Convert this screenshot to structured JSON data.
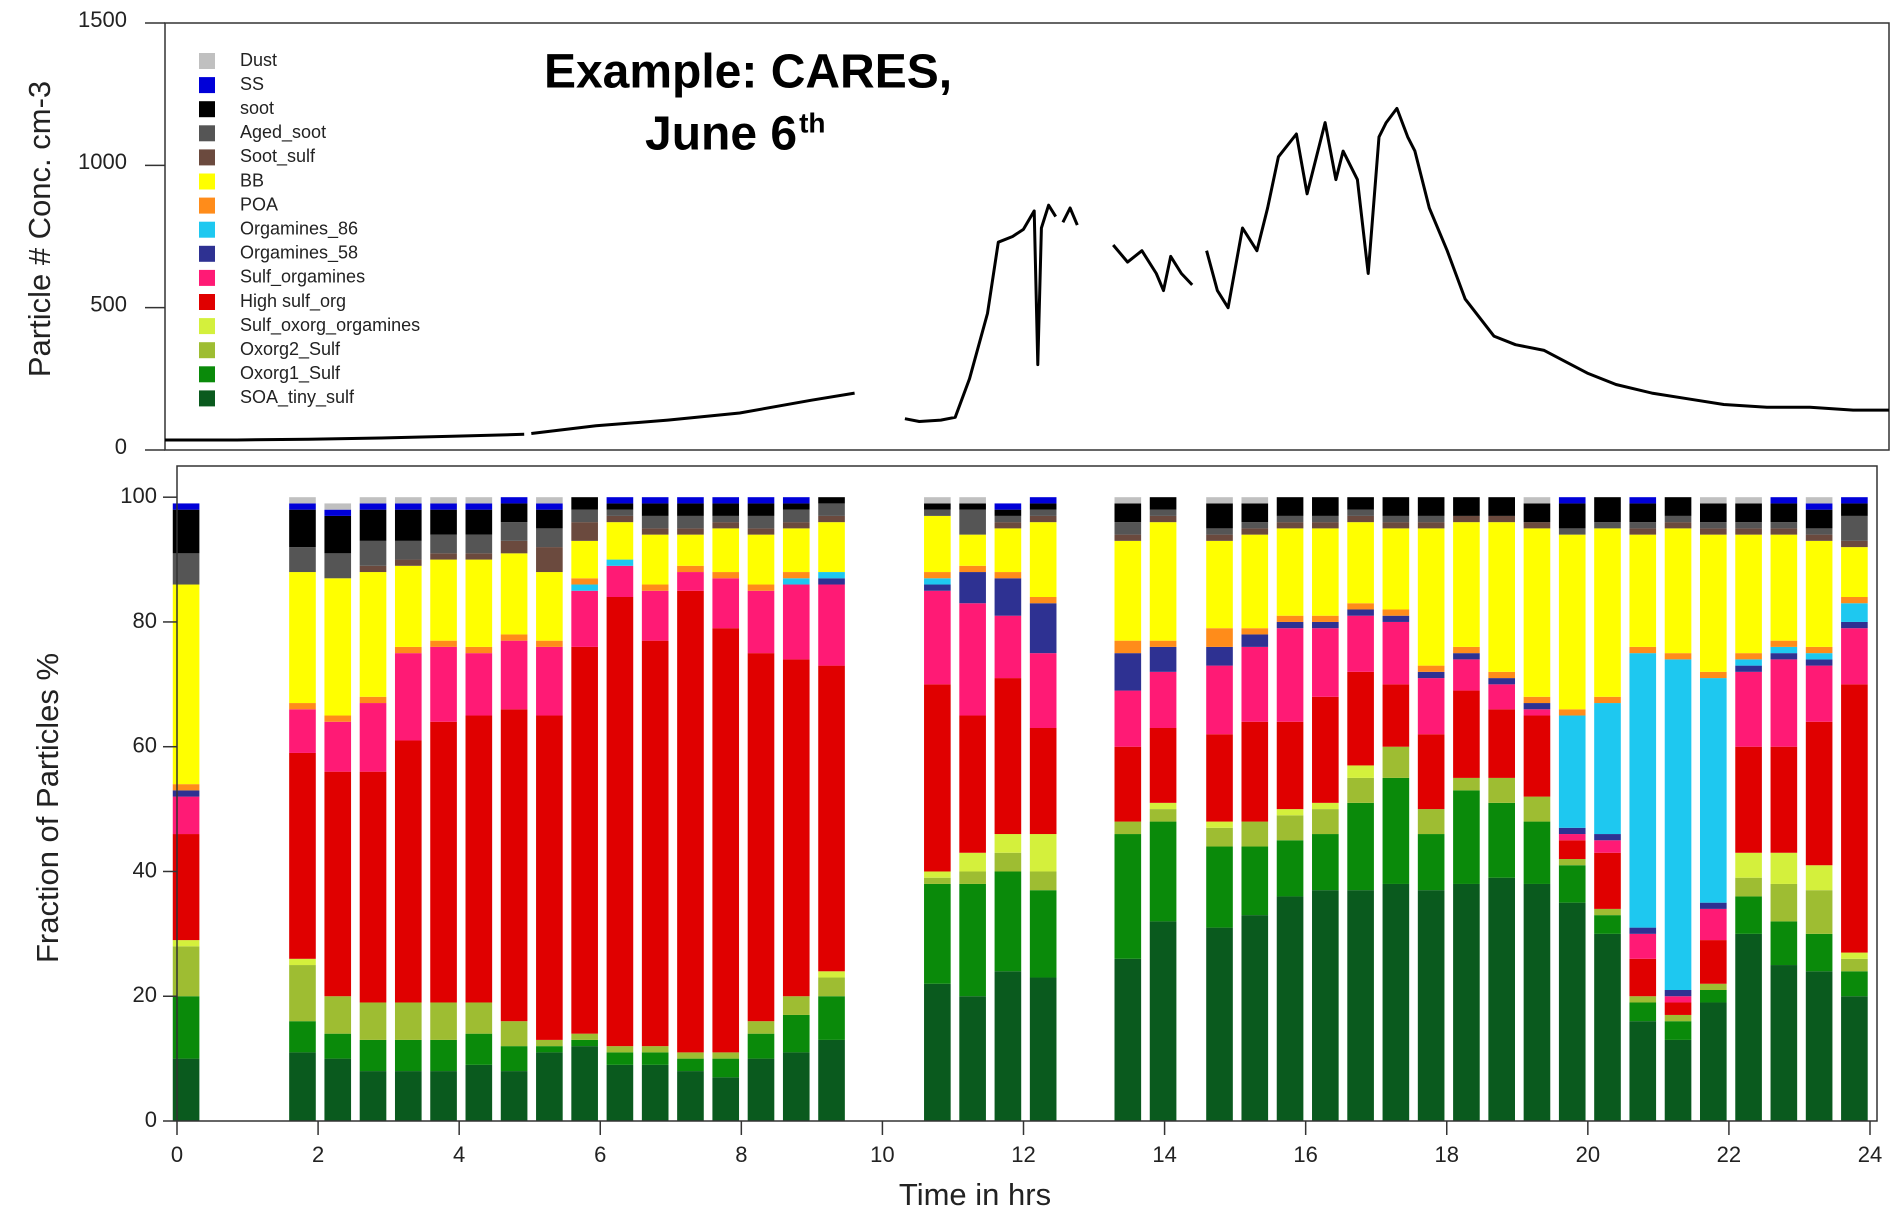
{
  "chart_data": [
    {
      "type": "line",
      "ylabel": "Particle # Conc. cm-3",
      "title_lines": [
        "Example: CARES,",
        "June 6"
      ],
      "title_sup": "th",
      "xlim": [
        0,
        24
      ],
      "ylim": [
        0,
        1500
      ],
      "yticks": [
        0,
        500,
        1000,
        1500
      ],
      "color": "#000000",
      "x": [
        0,
        1,
        2,
        3,
        4,
        5,
        5.05,
        5.1,
        6,
        7,
        8,
        9,
        9.6,
        9.8,
        10.3,
        10.5,
        10.8,
        11.0,
        11.2,
        11.45,
        11.6,
        11.8,
        11.95,
        12.1,
        12.15,
        12.2,
        12.3,
        12.4,
        12.45,
        12.5,
        12.6,
        12.7,
        12.95,
        13.2,
        13.4,
        13.6,
        13.8,
        13.9,
        14.0,
        14.15,
        14.3,
        14.4,
        14.5,
        14.65,
        14.8,
        15.0,
        15.2,
        15.35,
        15.5,
        15.75,
        15.9,
        16.0,
        16.15,
        16.3,
        16.4,
        16.6,
        16.75,
        16.9,
        17.0,
        17.15,
        17.3,
        17.4,
        17.6,
        17.85,
        18.1,
        18.5,
        18.8,
        19.2,
        19.5,
        19.8,
        20.2,
        20.7,
        21.2,
        21.7,
        22.3,
        22.9,
        23.5,
        24
      ],
      "values": [
        35,
        35,
        38,
        42,
        48,
        55,
        null,
        58,
        85,
        105,
        130,
        175,
        200,
        null,
        110,
        100,
        105,
        115,
        250,
        480,
        730,
        750,
        775,
        840,
        300,
        780,
        860,
        820,
        null,
        800,
        850,
        790,
        null,
        720,
        660,
        700,
        620,
        560,
        680,
        620,
        580,
        null,
        700,
        560,
        500,
        780,
        700,
        850,
        1030,
        1110,
        900,
        1000,
        1150,
        950,
        1050,
        950,
        620,
        1100,
        1150,
        1200,
        1100,
        1050,
        850,
        700,
        530,
        400,
        370,
        350,
        310,
        270,
        230,
        200,
        180,
        160,
        150,
        150,
        140,
        140
      ]
    },
    {
      "type": "stacked_bar",
      "ylabel": "Fraction of Particles %",
      "xlabel": "Time in hrs",
      "xlim": [
        0,
        24
      ],
      "xticks": [
        0,
        2,
        4,
        6,
        8,
        10,
        12,
        14,
        16,
        18,
        20,
        22,
        24
      ],
      "ylim": [
        0,
        105
      ],
      "yticks": [
        0,
        20,
        40,
        60,
        80,
        100
      ],
      "x": [
        0.15,
        1.8,
        2.3,
        2.8,
        3.3,
        3.8,
        4.3,
        4.8,
        5.3,
        5.8,
        6.3,
        6.8,
        7.3,
        7.8,
        8.3,
        8.8,
        9.3,
        10.8,
        11.3,
        11.8,
        12.3,
        13.5,
        14.0,
        14.8,
        15.3,
        15.8,
        16.3,
        16.8,
        17.3,
        17.8,
        18.3,
        18.8,
        19.3,
        19.8,
        20.3,
        20.8,
        21.3,
        21.8,
        22.3,
        22.8,
        23.3,
        23.8
      ],
      "series": [
        {
          "name": "Dust",
          "color": "#c0c0c0",
          "values": [
            0,
            1,
            1,
            1,
            1,
            1,
            1,
            0,
            1,
            0,
            0,
            0,
            0,
            0,
            0,
            0,
            0,
            1,
            1,
            0,
            0,
            1,
            0,
            1,
            1,
            0,
            0,
            0,
            0,
            0,
            0,
            0,
            1,
            0,
            0,
            0,
            0,
            1,
            1,
            0,
            1,
            0
          ]
        },
        {
          "name": "SS",
          "color": "#0000d8",
          "values": [
            1,
            1,
            1,
            1,
            1,
            1,
            1,
            1,
            1,
            0,
            1,
            1,
            1,
            1,
            1,
            1,
            0,
            0,
            0,
            1,
            1,
            0,
            0,
            0,
            0,
            0,
            0,
            0,
            0,
            0,
            0,
            0,
            0,
            1,
            0,
            1,
            0,
            0,
            0,
            1,
            1,
            1
          ]
        },
        {
          "name": "soot",
          "color": "#000000",
          "values": [
            7,
            6,
            6,
            5,
            5,
            4,
            4,
            3,
            3,
            2,
            1,
            2,
            2,
            2,
            2,
            1,
            1,
            1,
            1,
            1,
            1,
            3,
            2,
            4,
            3,
            3,
            3,
            2,
            3,
            3,
            3,
            3,
            3,
            4,
            4,
            3,
            3,
            3,
            3,
            3,
            3,
            2
          ]
        },
        {
          "name": "Aged_soot",
          "color": "#555555",
          "values": [
            5,
            4,
            4,
            4,
            3,
            3,
            3,
            3,
            3,
            2,
            1,
            2,
            2,
            1,
            2,
            2,
            2,
            1,
            4,
            1,
            1,
            2,
            1,
            1,
            1,
            1,
            1,
            1,
            1,
            1,
            0,
            0,
            0,
            1,
            1,
            1,
            1,
            1,
            1,
            1,
            1,
            4
          ]
        },
        {
          "name": "Soot_sulf",
          "color": "#6b4a3e",
          "values": [
            0,
            0,
            0,
            1,
            1,
            1,
            1,
            2,
            4,
            3,
            1,
            1,
            1,
            1,
            1,
            1,
            1,
            0,
            0,
            1,
            1,
            1,
            1,
            1,
            1,
            1,
            1,
            1,
            1,
            1,
            1,
            1,
            1,
            0,
            0,
            1,
            1,
            1,
            1,
            1,
            1,
            1
          ]
        },
        {
          "name": "BB",
          "color": "#ffff00",
          "values": [
            32,
            21,
            22,
            20,
            13,
            13,
            14,
            13,
            11,
            6,
            6,
            8,
            5,
            7,
            8,
            7,
            8,
            9,
            5,
            7,
            12,
            16,
            19,
            14,
            15,
            14,
            14,
            13,
            13,
            22,
            20,
            24,
            27,
            28,
            27,
            18,
            20,
            22,
            19,
            17,
            17,
            8
          ]
        },
        {
          "name": "POA",
          "color": "#ff8c1a",
          "values": [
            1,
            1,
            1,
            1,
            1,
            1,
            1,
            1,
            1,
            1,
            0,
            1,
            1,
            1,
            1,
            1,
            0,
            1,
            1,
            1,
            1,
            2,
            1,
            3,
            1,
            1,
            1,
            1,
            1,
            1,
            1,
            1,
            1,
            1,
            1,
            1,
            1,
            1,
            1,
            1,
            1,
            1
          ]
        },
        {
          "name": "Orgamines_86",
          "color": "#1ec8f0",
          "values": [
            0,
            0,
            0,
            0,
            0,
            0,
            0,
            0,
            0,
            1,
            1,
            0,
            0,
            0,
            0,
            1,
            1,
            1,
            0,
            0,
            0,
            0,
            0,
            0,
            0,
            0,
            0,
            0,
            0,
            0,
            0,
            0,
            0,
            18,
            21,
            44,
            53,
            36,
            1,
            1,
            1,
            3
          ]
        },
        {
          "name": "Orgamines_58",
          "color": "#2e3192",
          "values": [
            1,
            0,
            0,
            0,
            0,
            0,
            0,
            0,
            0,
            0,
            0,
            0,
            0,
            0,
            0,
            0,
            1,
            1,
            5,
            6,
            8,
            6,
            4,
            3,
            2,
            1,
            1,
            1,
            1,
            1,
            1,
            1,
            1,
            1,
            1,
            1,
            1,
            1,
            1,
            1,
            1,
            1
          ]
        },
        {
          "name": "Sulf_orgamines",
          "color": "#ff1a75",
          "values": [
            6,
            7,
            8,
            11,
            14,
            12,
            10,
            11,
            11,
            9,
            5,
            8,
            3,
            8,
            10,
            12,
            13,
            15,
            18,
            10,
            12,
            9,
            9,
            11,
            12,
            15,
            11,
            9,
            10,
            9,
            5,
            4,
            1,
            1,
            2,
            4,
            1,
            5,
            12,
            14,
            9,
            9
          ]
        },
        {
          "name": "High sulf_org",
          "color": "#e00000",
          "values": [
            17,
            33,
            36,
            37,
            42,
            45,
            46,
            50,
            52,
            62,
            72,
            65,
            74,
            68,
            59,
            54,
            49,
            30,
            22,
            25,
            17,
            12,
            12,
            14,
            16,
            14,
            17,
            15,
            10,
            12,
            14,
            11,
            13,
            3,
            9,
            6,
            2,
            7,
            17,
            17,
            23,
            43
          ]
        },
        {
          "name": "Sulf_oxorg_orgamines",
          "color": "#d4f03c",
          "values": [
            1,
            1,
            0,
            0,
            0,
            0,
            0,
            0,
            0,
            0,
            0,
            0,
            0,
            0,
            0,
            0,
            1,
            1,
            3,
            3,
            6,
            0,
            1,
            1,
            0,
            1,
            1,
            2,
            0,
            0,
            0,
            0,
            0,
            0,
            0,
            0,
            0,
            0,
            4,
            5,
            4,
            1
          ]
        },
        {
          "name": "Oxorg2_Sulf",
          "color": "#9ebd32",
          "values": [
            8,
            9,
            6,
            6,
            6,
            6,
            5,
            4,
            1,
            1,
            1,
            1,
            1,
            1,
            2,
            3,
            3,
            1,
            2,
            3,
            3,
            2,
            2,
            3,
            4,
            4,
            4,
            4,
            5,
            4,
            2,
            4,
            4,
            1,
            1,
            1,
            1,
            1,
            3,
            6,
            7,
            2
          ]
        },
        {
          "name": "Oxorg1_Sulf",
          "color": "#0a8a0a",
          "values": [
            10,
            5,
            4,
            5,
            5,
            5,
            5,
            4,
            1,
            1,
            2,
            2,
            2,
            3,
            4,
            6,
            7,
            16,
            18,
            16,
            14,
            20,
            16,
            13,
            11,
            9,
            9,
            14,
            17,
            9,
            15,
            12,
            10,
            6,
            3,
            3,
            3,
            2,
            6,
            7,
            6,
            4
          ]
        },
        {
          "name": "SOA_tiny_sulf",
          "color": "#0a5a1e",
          "values": [
            10,
            11,
            10,
            8,
            8,
            8,
            9,
            8,
            11,
            12,
            9,
            9,
            8,
            7,
            10,
            11,
            13,
            22,
            20,
            24,
            23,
            26,
            32,
            31,
            33,
            36,
            37,
            37,
            38,
            37,
            38,
            39,
            38,
            35,
            30,
            16,
            13,
            19,
            30,
            25,
            24,
            20
          ]
        }
      ]
    }
  ]
}
